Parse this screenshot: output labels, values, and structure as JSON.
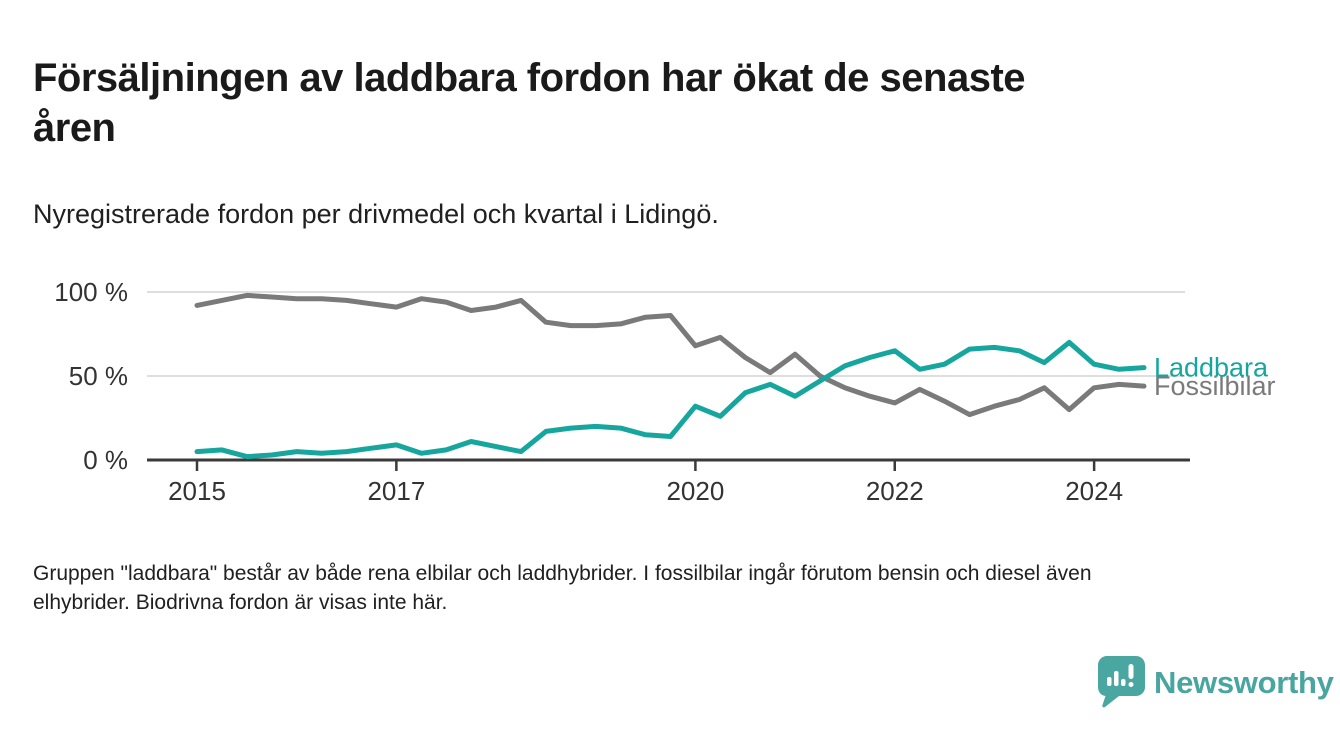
{
  "header": {
    "title": "Försäljningen av laddbara fordon har ökat de senaste åren",
    "title_lines": [
      "Försäljningen av laddbara fordon har ökat de senaste",
      "åren"
    ],
    "subtitle": "Nyregistrerade fordon per drivmedel och kvartal i Lidingö."
  },
  "chart_data": {
    "type": "line",
    "unit": "%",
    "frequency": "quarterly",
    "start": "2015 Q1",
    "end": "2024 Q3",
    "ylim": [
      0,
      100
    ],
    "grid": true,
    "legend": "line-end-labels",
    "x_tick_years": [
      2015,
      2017,
      2020,
      2022,
      2024
    ],
    "y_ticks": [
      {
        "value": 100,
        "label": "100 %"
      },
      {
        "value": 50,
        "label": "50 %"
      },
      {
        "value": 0,
        "label": "0 %"
      }
    ],
    "series": [
      {
        "name": "Fossilbilar",
        "color": "#7a7a7a",
        "values": [
          92,
          95,
          98,
          97,
          96,
          96,
          95,
          93,
          91,
          96,
          94,
          89,
          91,
          95,
          82,
          80,
          80,
          81,
          85,
          86,
          68,
          73,
          61,
          52,
          63,
          50,
          43,
          38,
          34,
          42,
          35,
          27,
          32,
          36,
          43,
          30,
          43,
          45,
          44
        ]
      },
      {
        "name": "Laddbara",
        "color": "#17a69e",
        "values": [
          5,
          6,
          2,
          3,
          5,
          4,
          5,
          7,
          9,
          4,
          6,
          11,
          8,
          5,
          17,
          19,
          20,
          19,
          15,
          14,
          32,
          26,
          40,
          45,
          38,
          47,
          56,
          61,
          65,
          54,
          57,
          66,
          67,
          65,
          58,
          70,
          57,
          54,
          55
        ]
      }
    ],
    "colors": {
      "grid": "#dedede",
      "axis": "#3a3a3a",
      "tick_text": "#333333"
    }
  },
  "footnote": {
    "text": "Gruppen \"laddbara\" består av både rena elbilar och laddhybrider. I fossilbilar ingår förutom bensin och diesel även elhybrider. Biodrivna fordon är visas inte här.",
    "lines": [
      "Gruppen \"laddbara\" består av både rena elbilar och laddhybrider. I fossilbilar ingår förutom bensin och diesel även",
      "elhybrider. Biodrivna fordon är visas inte här."
    ]
  },
  "branding": {
    "name": "Newsworthy",
    "color": "#48a59f"
  }
}
